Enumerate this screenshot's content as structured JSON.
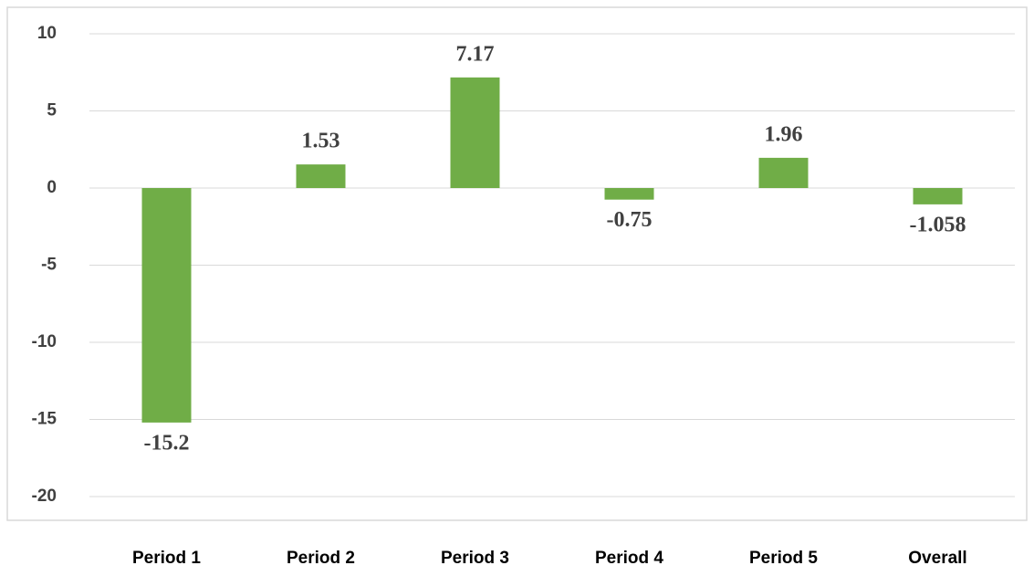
{
  "chart_data": {
    "type": "bar",
    "categories": [
      "Period 1",
      "Period 2",
      "Period 3",
      "Period 4",
      "Period 5",
      "Overall"
    ],
    "values": [
      -15.2,
      1.53,
      7.17,
      -0.75,
      1.96,
      -1.058
    ],
    "color": "#70ad47",
    "ylim": [
      -20,
      10
    ],
    "yticks": [
      10,
      5,
      0,
      -5,
      -10,
      -15,
      -20
    ],
    "grid": true
  }
}
